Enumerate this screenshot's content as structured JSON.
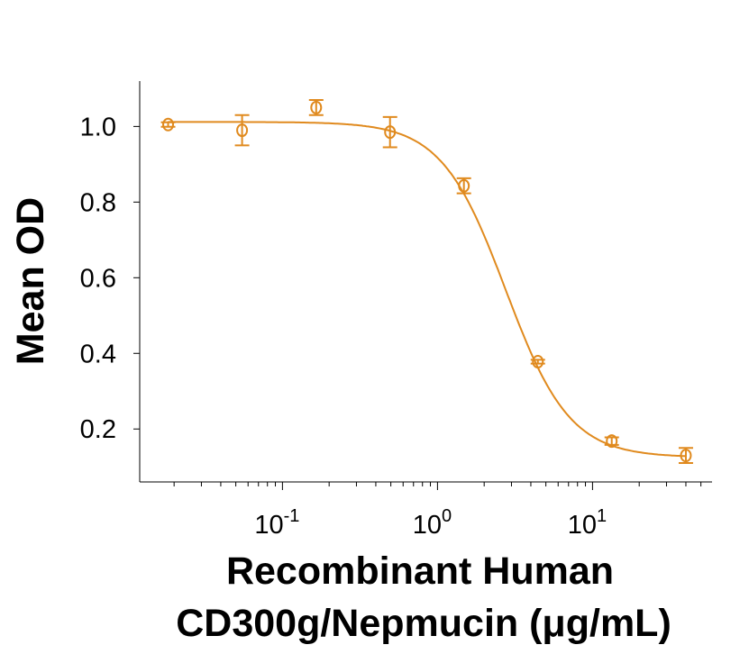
{
  "chart_data": {
    "type": "scatter",
    "title": "",
    "xlabel_lines": [
      "Recombinant Human",
      "CD300g/Nepmucin (μg/mL)"
    ],
    "ylabel": "Mean OD",
    "xscale": "log",
    "xlim": [
      0.012,
      59
    ],
    "ylim": [
      0.06,
      1.12
    ],
    "grid": false,
    "legend": "none",
    "color": "#E08A1E",
    "x_ticks": [
      {
        "value": 0.1,
        "base": "10",
        "exp": "-1"
      },
      {
        "value": 1,
        "base": "10",
        "exp": "0"
      },
      {
        "value": 10,
        "base": "10",
        "exp": "1"
      }
    ],
    "y_ticks": [
      {
        "value": 0.2,
        "label": "0.2"
      },
      {
        "value": 0.4,
        "label": "0.4"
      },
      {
        "value": 0.6,
        "label": "0.6"
      },
      {
        "value": 0.8,
        "label": "0.8"
      },
      {
        "value": 1.0,
        "label": "1.0"
      }
    ],
    "series": [
      {
        "x": [
          0.0183,
          0.0549,
          0.165,
          0.494,
          1.48,
          4.44,
          13.3,
          40
        ],
        "y": [
          1.005,
          0.99,
          1.05,
          0.985,
          0.843,
          0.378,
          0.168,
          0.13
        ],
        "error": [
          0.006,
          0.04,
          0.02,
          0.04,
          0.02,
          0.005,
          0.01,
          0.02
        ]
      }
    ],
    "fit": {
      "model": "4PL",
      "top": 1.012,
      "bottom": 0.125,
      "ec50": 2.75,
      "hill": 2.1
    }
  }
}
